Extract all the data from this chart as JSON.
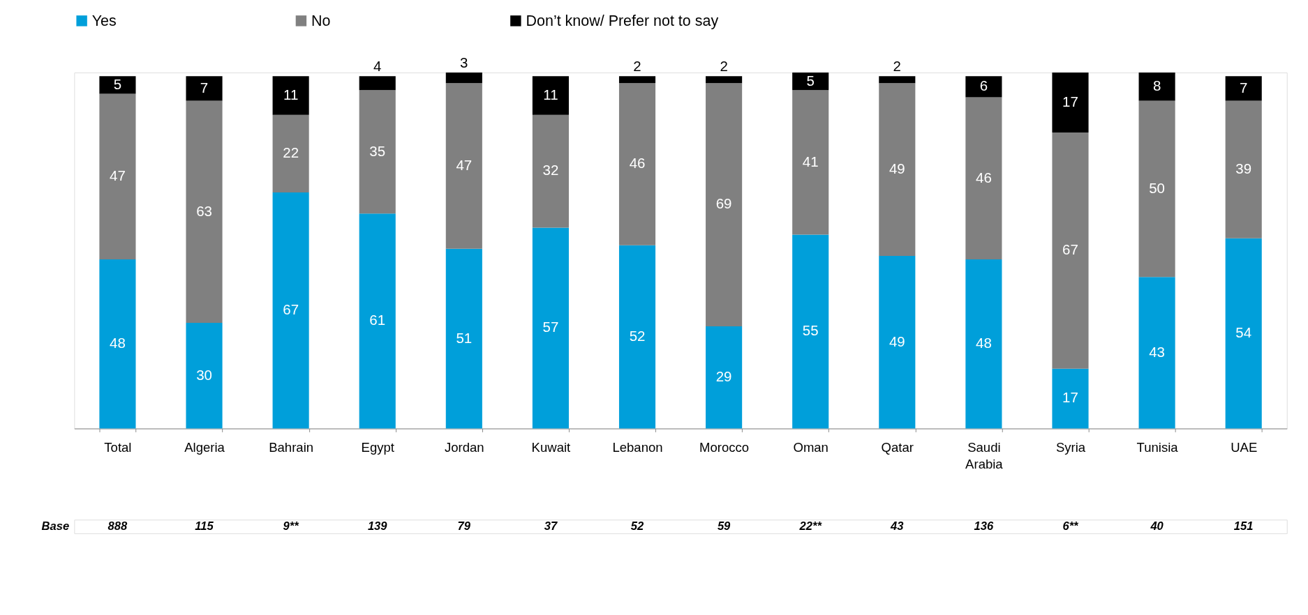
{
  "chart_data": {
    "type": "bar",
    "stacked": true,
    "data_labels": true,
    "legend": "top",
    "grid": false,
    "categories": [
      "Total",
      "Algeria",
      "Bahrain",
      "Egypt",
      "Jordan",
      "Kuwait",
      "Lebanon",
      "Morocco",
      "Oman",
      "Qatar",
      "Saudi Arabia",
      "Syria",
      "Tunisia",
      "UAE"
    ],
    "series": [
      {
        "name": "Yes",
        "color": "#009fda",
        "values": [
          48,
          30,
          67,
          61,
          51,
          57,
          52,
          29,
          55,
          49,
          48,
          17,
          43,
          54
        ]
      },
      {
        "name": "No",
        "color": "#808080",
        "values": [
          47,
          63,
          22,
          35,
          47,
          32,
          46,
          69,
          41,
          49,
          46,
          67,
          50,
          39
        ]
      },
      {
        "name": "Don’t know/ Prefer not to say",
        "color": "#000000",
        "values": [
          5,
          7,
          11,
          4,
          3,
          11,
          2,
          2,
          5,
          2,
          6,
          17,
          8,
          7
        ]
      }
    ],
    "annotations": [
      "Base",
      "888",
      "115",
      "9**",
      "139",
      "79",
      "37",
      "52",
      "59",
      "22**",
      "43",
      "136",
      "6**",
      "40",
      "151"
    ]
  }
}
